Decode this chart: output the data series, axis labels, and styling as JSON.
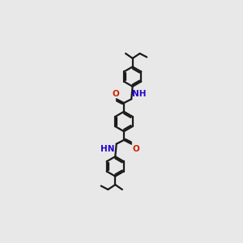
{
  "bg_color": "#e8e8e8",
  "bond_color": "#1a1a1a",
  "nitrogen_color": "#2200cc",
  "oxygen_color": "#cc2200",
  "line_width": 1.6,
  "fig_width": 3.0,
  "fig_height": 3.0,
  "dpi": 100,
  "xlim": [
    0,
    10
  ],
  "ylim": [
    0,
    20
  ]
}
